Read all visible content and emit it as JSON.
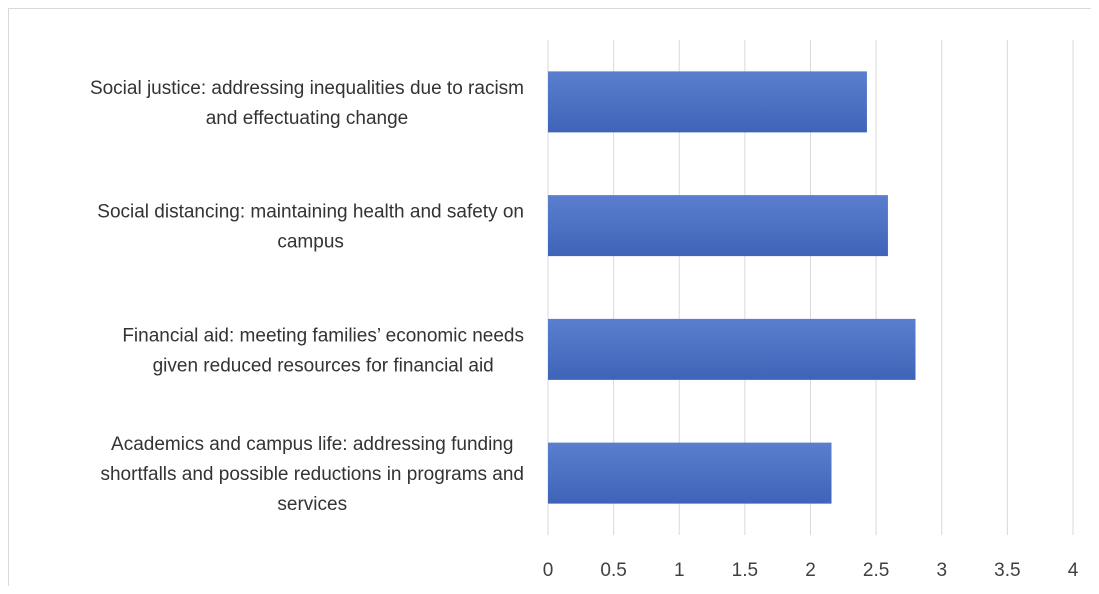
{
  "chart_data": {
    "type": "bar",
    "orientation": "horizontal",
    "categories": [
      [
        "Social justice: addressing inequalities due to racism",
        "and effectuating change"
      ],
      [
        "Social distancing: maintaining health and safety on",
        "campus"
      ],
      [
        "Financial aid: meeting families’ economic needs",
        "given reduced resources for financial aid"
      ],
      [
        "Academics and campus life: addressing funding",
        "shortfalls and possible reductions in programs and",
        "services"
      ]
    ],
    "values": [
      2.43,
      2.59,
      2.8,
      2.16
    ],
    "xlim": [
      0,
      4
    ],
    "xticks": [
      "0",
      "0.5",
      "1",
      "1.5",
      "2",
      "2.5",
      "3",
      "3.5",
      "4"
    ],
    "xtick_values": [
      0,
      0.5,
      1,
      1.5,
      2,
      2.5,
      3,
      3.5,
      4
    ],
    "grid": true,
    "colors": {
      "bar_top": "#5b7fce",
      "bar_bottom": "#3f63b8",
      "grid": "#d9d9d9"
    }
  }
}
